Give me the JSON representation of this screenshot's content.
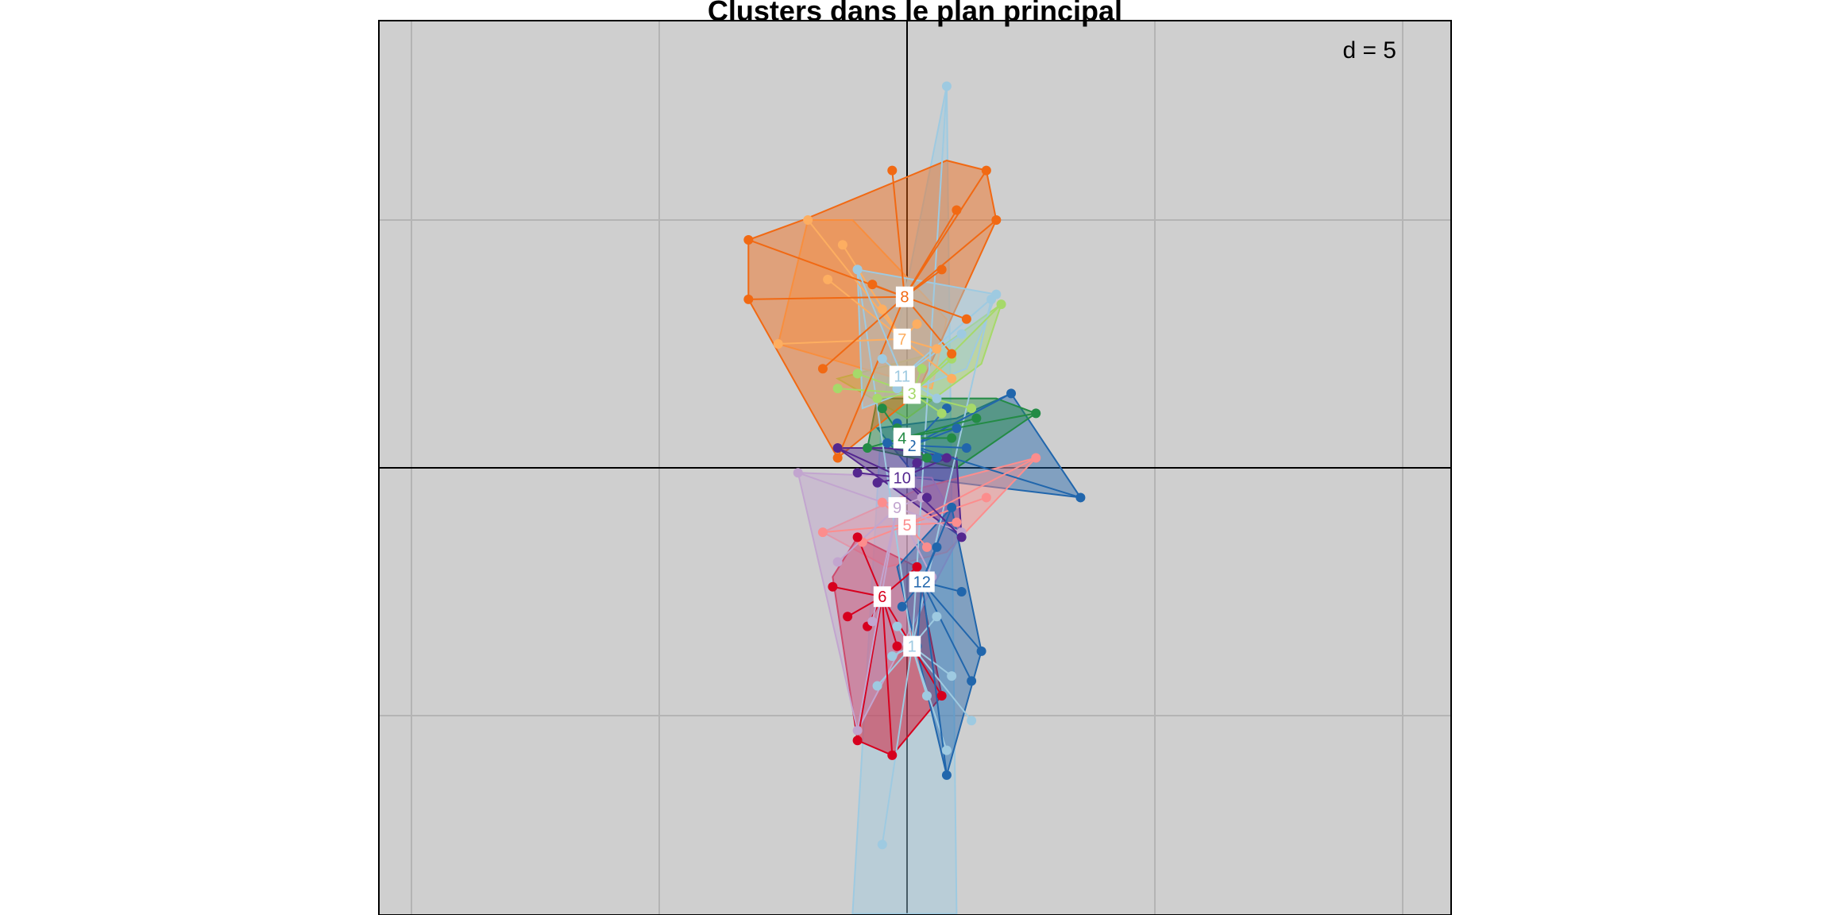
{
  "chart_data": {
    "type": "scatter",
    "title": "Clusters dans le plan principal",
    "scale_label": "d = 5",
    "xlim": [
      -10.7,
      11
    ],
    "ylim": [
      -9,
      9
    ],
    "grid_step": 5,
    "background": "#cfcfcf",
    "grid_color": "#b4b4b4",
    "series": [
      {
        "name": "1",
        "color": "#9ecae1",
        "center": [
          0.1,
          -3.6
        ],
        "hull": [
          [
            0.8,
            7.7
          ],
          [
            1.0,
            -9.0
          ],
          [
            -1.1,
            -9.0
          ],
          [
            -0.5,
            1.2
          ]
        ],
        "points": [
          [
            0.8,
            7.7
          ],
          [
            -0.5,
            -7.6
          ],
          [
            1.3,
            -5.1
          ],
          [
            0.4,
            -4.6
          ],
          [
            -0.3,
            -3.8
          ],
          [
            0.6,
            -3.0
          ],
          [
            0.9,
            -4.2
          ],
          [
            -0.6,
            -4.4
          ],
          [
            1.7,
            3.4
          ],
          [
            -1.0,
            4.0
          ],
          [
            0.8,
            -5.7
          ],
          [
            -0.2,
            -3.2
          ]
        ]
      },
      {
        "name": "2",
        "color": "#2166ac",
        "center": [
          0.1,
          0.45
        ],
        "hull": [
          [
            2.1,
            1.5
          ],
          [
            3.5,
            -0.6
          ],
          [
            0.2,
            -0.2
          ],
          [
            -0.6,
            0.8
          ],
          [
            1.0,
            1.0
          ]
        ],
        "points": [
          [
            2.1,
            1.5
          ],
          [
            3.5,
            -0.6
          ],
          [
            1.0,
            0.8
          ],
          [
            -0.4,
            0.5
          ],
          [
            0.6,
            0.2
          ],
          [
            1.2,
            0.4
          ],
          [
            -0.2,
            0.9
          ],
          [
            0.8,
            1.2
          ]
        ]
      },
      {
        "name": "3",
        "color": "#a6d96a",
        "center": [
          0.1,
          1.5
        ],
        "hull": [
          [
            1.9,
            3.3
          ],
          [
            1.5,
            2.1
          ],
          [
            0.0,
            1.0
          ],
          [
            -1.4,
            1.8
          ],
          [
            0.5,
            2.3
          ]
        ],
        "points": [
          [
            1.9,
            3.3
          ],
          [
            -1.4,
            1.6
          ],
          [
            0.9,
            2.2
          ],
          [
            -0.6,
            1.4
          ],
          [
            1.3,
            1.2
          ],
          [
            0.3,
            2.0
          ],
          [
            -1.0,
            1.9
          ],
          [
            0.7,
            1.1
          ]
        ]
      },
      {
        "name": "4",
        "color": "#238b45",
        "center": [
          -0.1,
          0.6
        ],
        "hull": [
          [
            2.6,
            1.1
          ],
          [
            1.0,
            0.0
          ],
          [
            -0.8,
            0.4
          ],
          [
            -0.6,
            1.4
          ],
          [
            1.8,
            1.4
          ]
        ],
        "points": [
          [
            2.6,
            1.1
          ],
          [
            -0.8,
            0.4
          ],
          [
            0.9,
            0.6
          ],
          [
            -0.5,
            1.2
          ],
          [
            0.4,
            0.2
          ],
          [
            1.4,
            1.0
          ],
          [
            -0.2,
            0.8
          ]
        ]
      },
      {
        "name": "5",
        "color": "#fc8d8d",
        "center": [
          0.0,
          -1.15
        ],
        "hull": [
          [
            2.6,
            0.2
          ],
          [
            0.8,
            -1.7
          ],
          [
            -0.4,
            -2.0
          ],
          [
            -1.7,
            -1.3
          ],
          [
            0.3,
            -0.4
          ]
        ],
        "points": [
          [
            2.6,
            0.2
          ],
          [
            -1.7,
            -1.3
          ],
          [
            1.0,
            -1.1
          ],
          [
            -0.5,
            -0.7
          ],
          [
            0.4,
            -1.6
          ],
          [
            1.6,
            -0.6
          ],
          [
            -0.9,
            -1.5
          ]
        ]
      },
      {
        "name": "6",
        "color": "#d7001e",
        "center": [
          -0.5,
          -2.6
        ],
        "hull": [
          [
            -1.0,
            -1.4
          ],
          [
            -1.5,
            -2.2
          ],
          [
            -1.0,
            -5.5
          ],
          [
            -0.3,
            -5.8
          ],
          [
            0.7,
            -4.6
          ],
          [
            0.2,
            -2.0
          ]
        ],
        "points": [
          [
            -1.0,
            -1.4
          ],
          [
            -1.5,
            -2.4
          ],
          [
            -1.0,
            -5.5
          ],
          [
            -0.3,
            -5.8
          ],
          [
            0.7,
            -4.6
          ],
          [
            0.2,
            -2.0
          ],
          [
            -0.8,
            -3.2
          ],
          [
            -0.2,
            -3.6
          ],
          [
            -1.2,
            -3.0
          ]
        ]
      },
      {
        "name": "7",
        "color": "#fdae61",
        "center": [
          -0.1,
          2.6
        ],
        "hull": [
          [
            -2.0,
            5.0
          ],
          [
            -1.1,
            5.0
          ],
          [
            0.8,
            3.0
          ],
          [
            0.5,
            1.6
          ],
          [
            -2.6,
            2.5
          ]
        ],
        "points": [
          [
            -2.0,
            5.0
          ],
          [
            -2.6,
            2.5
          ],
          [
            -1.3,
            4.5
          ],
          [
            0.6,
            2.4
          ],
          [
            -0.5,
            3.2
          ],
          [
            0.9,
            1.8
          ],
          [
            -1.6,
            3.8
          ],
          [
            0.2,
            2.9
          ]
        ]
      },
      {
        "name": "8",
        "color": "#f16913",
        "center": [
          -0.05,
          3.45
        ],
        "hull": [
          [
            -3.2,
            4.6
          ],
          [
            -2.1,
            5.0
          ],
          [
            0.8,
            6.2
          ],
          [
            1.6,
            6.0
          ],
          [
            1.8,
            5.0
          ],
          [
            0.2,
            1.5
          ],
          [
            -1.4,
            0.2
          ],
          [
            -3.2,
            3.4
          ]
        ],
        "points": [
          [
            -3.2,
            4.6
          ],
          [
            -3.2,
            3.4
          ],
          [
            1.6,
            6.0
          ],
          [
            1.8,
            5.0
          ],
          [
            -1.4,
            0.2
          ],
          [
            1.0,
            5.2
          ],
          [
            0.7,
            4.0
          ],
          [
            -0.3,
            6.0
          ],
          [
            1.2,
            3.0
          ],
          [
            -0.7,
            3.7
          ],
          [
            -1.7,
            2.0
          ],
          [
            0.9,
            2.3
          ]
        ]
      },
      {
        "name": "9",
        "color": "#c2a5cf",
        "center": [
          -0.2,
          -0.8
        ],
        "hull": [
          [
            -2.2,
            -0.1
          ],
          [
            -1.0,
            -5.3
          ],
          [
            1.1,
            -1.3
          ],
          [
            0.5,
            -0.2
          ]
        ],
        "points": [
          [
            -2.2,
            -0.1
          ],
          [
            -1.0,
            -5.3
          ],
          [
            1.1,
            -1.3
          ],
          [
            -0.7,
            -3.1
          ],
          [
            0.3,
            -0.6
          ],
          [
            -1.4,
            -1.9
          ],
          [
            0.5,
            -2.2
          ]
        ]
      },
      {
        "name": "10",
        "color": "#54278f",
        "center": [
          -0.1,
          -0.2
        ],
        "hull": [
          [
            -1.4,
            0.4
          ],
          [
            1.1,
            -1.4
          ],
          [
            1.0,
            0.2
          ],
          [
            -0.4,
            0.4
          ]
        ],
        "points": [
          [
            -1.4,
            0.4
          ],
          [
            1.1,
            -1.4
          ],
          [
            0.8,
            0.2
          ],
          [
            -0.6,
            -0.3
          ],
          [
            0.4,
            -0.6
          ],
          [
            -1.0,
            -0.1
          ],
          [
            0.2,
            0.1
          ]
        ]
      },
      {
        "name": "11",
        "color": "#9ecae1",
        "center": [
          -0.1,
          1.85
        ],
        "hull": [
          [
            1.8,
            3.5
          ],
          [
            1.2,
            2.0
          ],
          [
            -0.9,
            1.2
          ],
          [
            -1.0,
            4.0
          ]
        ],
        "points": [
          [
            1.8,
            3.5
          ],
          [
            -1.0,
            4.0
          ],
          [
            0.6,
            1.4
          ],
          [
            -0.5,
            2.2
          ],
          [
            1.1,
            2.7
          ],
          [
            -0.2,
            1.6
          ]
        ]
      },
      {
        "name": "12",
        "color": "#2166ac",
        "center": [
          0.3,
          -2.3
        ],
        "hull": [
          [
            0.9,
            -0.8
          ],
          [
            1.5,
            -3.7
          ],
          [
            0.8,
            -6.2
          ],
          [
            -0.2,
            -2.0
          ]
        ],
        "points": [
          [
            0.9,
            -0.8
          ],
          [
            1.5,
            -3.7
          ],
          [
            0.8,
            -6.2
          ],
          [
            1.1,
            -2.5
          ],
          [
            -0.1,
            -2.8
          ],
          [
            0.6,
            -1.6
          ],
          [
            1.3,
            -4.3
          ],
          [
            0.2,
            -3.6
          ]
        ]
      }
    ]
  }
}
